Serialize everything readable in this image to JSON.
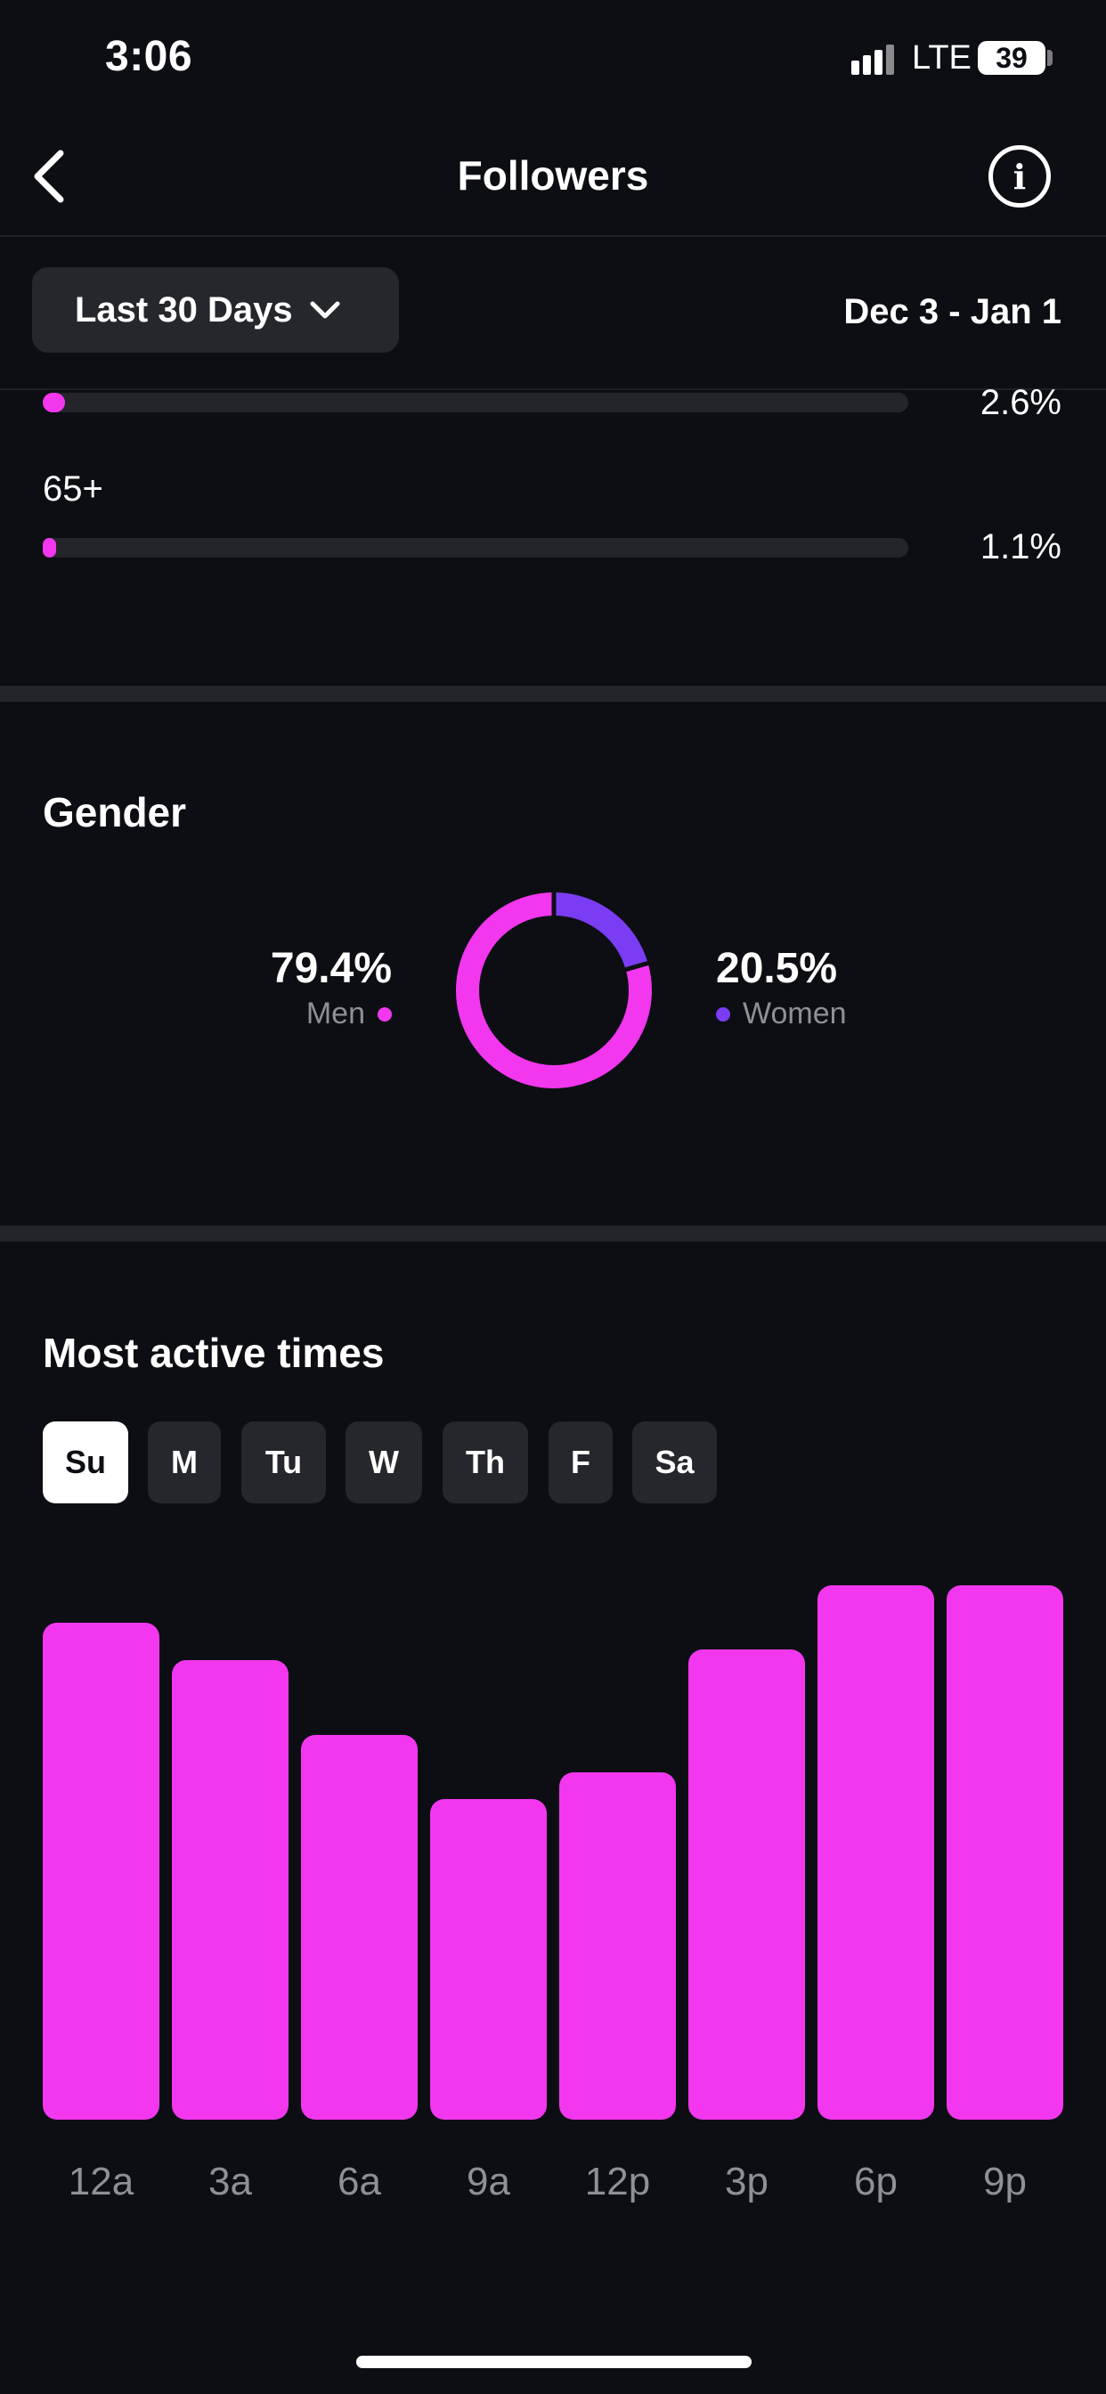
{
  "status_bar": {
    "time": "3:06",
    "network": "LTE",
    "battery": "39"
  },
  "header": {
    "title": "Followers",
    "back_icon": "chevron-left-icon",
    "info_icon": "info-icon",
    "info_glyph": "i"
  },
  "filter": {
    "range_label": "Last 30 Days",
    "date_range": "Dec 3 - Jan 1"
  },
  "age": {
    "rows": [
      {
        "label": "",
        "percent": "2.6%",
        "fraction": 0.026
      },
      {
        "label": "65+",
        "percent": "1.1%",
        "fraction": 0.011
      }
    ]
  },
  "gender": {
    "title": "Gender",
    "men": {
      "percent": "79.4%",
      "label": "Men",
      "value": 79.4
    },
    "women": {
      "percent": "20.5%",
      "label": "Women",
      "value": 20.5
    }
  },
  "colors": {
    "accent": "#f237ee",
    "women": "#7a3df3",
    "track": "#23252b",
    "background": "#0c0e13",
    "axis_label": "#8e9096"
  },
  "active_times": {
    "title": "Most active times",
    "days": [
      "Su",
      "M",
      "Tu",
      "W",
      "Th",
      "F",
      "Sa"
    ],
    "selected_day": "Su"
  },
  "chart_data": {
    "type": "bar",
    "categories": [
      "12a",
      "3a",
      "6a",
      "9a",
      "12p",
      "3p",
      "6p",
      "9p"
    ],
    "values": [
      0.93,
      0.86,
      0.72,
      0.6,
      0.65,
      0.88,
      1.0,
      1.0
    ],
    "ylim": [
      0,
      1
    ],
    "grid": false
  }
}
